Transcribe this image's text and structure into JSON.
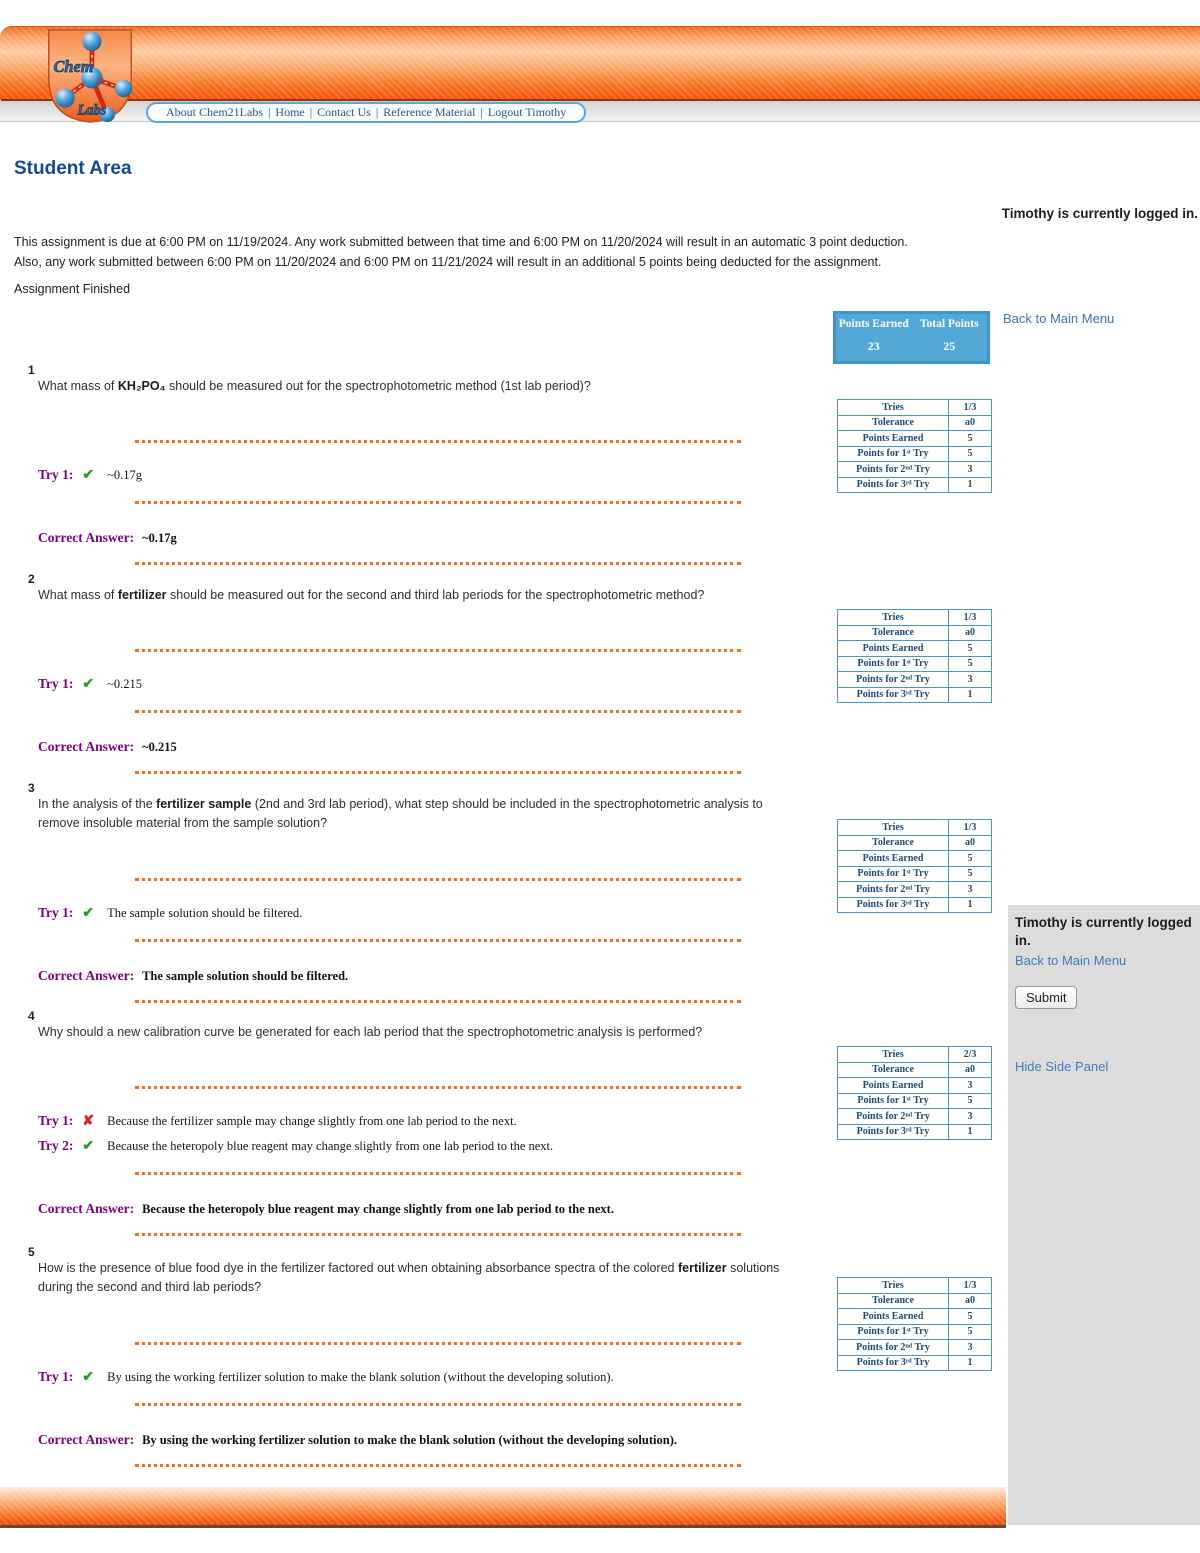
{
  "header": {
    "logo": {
      "line1": "Chem",
      "num": "21",
      "line2": "Labs"
    },
    "nav_links": [
      "About Chem21Labs",
      "Home",
      "Contact Us",
      "Reference Material",
      "Logout Timothy"
    ],
    "nav_separator": "|"
  },
  "page": {
    "title": "Student Area",
    "logged_in_notice": "Timothy is currently logged in.",
    "due_line1": "This assignment is due at 6:00 PM on 11/19/2024. Any work submitted between that time and 6:00 PM on 11/20/2024 will result in an automatic 3 point deduction.",
    "due_line2": "Also, any work submitted between 6:00 PM on 11/20/2024 and 6:00 PM on 11/21/2024 will result in an additional 5 points being deducted for the assignment.",
    "status": "Assignment Finished",
    "back_link": "Back to Main Menu"
  },
  "score_box": {
    "headers": [
      "Points Earned",
      "Total Points"
    ],
    "values": [
      "23",
      "25"
    ]
  },
  "side_panel": {
    "logged_in": "Timothy is currently logged in.",
    "back_link": "Back to Main Menu",
    "submit_label": "Submit",
    "hide_link": "Hide Side Panel"
  },
  "questions": [
    {
      "number": "1",
      "q_prefix": "What mass of ",
      "q_bold": "KH₂PO₄",
      "q_suffix": " should be measured out for the spectrophotometric method (1st lab period)?",
      "tries": [
        {
          "label": "Try 1:",
          "mark": "✔",
          "answer": "~0.17g"
        }
      ],
      "correct_label": "Correct Answer:",
      "correct_answer": "~0.17g",
      "table_rows": [
        [
          "Tries",
          "1/3"
        ],
        [
          "Tolerance",
          "a0"
        ],
        [
          "Points Earned",
          "5"
        ],
        [
          "Points for 1ˢᵗ Try",
          "5"
        ],
        [
          "Points for 2ⁿᵈ Try",
          "3"
        ],
        [
          "Points for 3ʳᵈ Try",
          "1"
        ]
      ]
    },
    {
      "number": "2",
      "q_prefix": "What mass of ",
      "q_bold": "fertilizer",
      "q_suffix": " should be measured out for the second and third lab periods for the spectrophotometric method?",
      "tries": [
        {
          "label": "Try 1:",
          "mark": "✔",
          "answer": "~0.215"
        }
      ],
      "correct_label": "Correct Answer:",
      "correct_answer": "~0.215",
      "table_rows": [
        [
          "Tries",
          "1/3"
        ],
        [
          "Tolerance",
          "a0"
        ],
        [
          "Points Earned",
          "5"
        ],
        [
          "Points for 1ˢᵗ Try",
          "5"
        ],
        [
          "Points for 2ⁿᵈ Try",
          "3"
        ],
        [
          "Points for 3ʳᵈ Try",
          "1"
        ]
      ]
    },
    {
      "number": "3",
      "q_prefix": "In the analysis of the ",
      "q_bold": "fertilizer sample",
      "q_suffix": " (2nd and 3rd lab period), what step should be included in the spectrophotometric analysis to remove insoluble material from the sample solution?",
      "tries": [
        {
          "label": "Try 1:",
          "mark": "✔",
          "answer": "The sample solution should be filtered."
        }
      ],
      "correct_label": "Correct Answer:",
      "correct_answer": "The sample solution should be filtered.",
      "table_rows": [
        [
          "Tries",
          "1/3"
        ],
        [
          "Tolerance",
          "a0"
        ],
        [
          "Points Earned",
          "5"
        ],
        [
          "Points for 1ˢᵗ Try",
          "5"
        ],
        [
          "Points for 2ⁿᵈ Try",
          "3"
        ],
        [
          "Points for 3ʳᵈ Try",
          "1"
        ]
      ]
    },
    {
      "number": "4",
      "q_prefix": "Why should a new calibration curve be generated for each lab period that the spectrophotometric analysis is performed?",
      "q_bold": "",
      "q_suffix": "",
      "tries": [
        {
          "label": "Try 1:",
          "mark": "✘",
          "answer": "Because the fertilizer sample may change slightly from one lab period to the next."
        },
        {
          "label": "Try 2:",
          "mark": "✔",
          "answer": "Because the heteropoly blue reagent may change slightly from one lab period to the next."
        }
      ],
      "correct_label": "Correct Answer:",
      "correct_answer": "Because the heteropoly blue reagent may change slightly from one lab period to the next.",
      "table_rows": [
        [
          "Tries",
          "2/3"
        ],
        [
          "Tolerance",
          "a0"
        ],
        [
          "Points Earned",
          "3"
        ],
        [
          "Points for 1ˢᵗ Try",
          "5"
        ],
        [
          "Points for 2ⁿᵈ Try",
          "3"
        ],
        [
          "Points for 3ʳᵈ Try",
          "1"
        ]
      ]
    },
    {
      "number": "5",
      "q_prefix": "How is the presence of blue food dye in the fertilizer factored out when obtaining absorbance spectra of the colored ",
      "q_bold": "fertilizer",
      "q_suffix": " solutions during the second and third lab periods?",
      "tries": [
        {
          "label": "Try 1:",
          "mark": "✔",
          "answer": "By using the working fertilizer solution to make the blank solution (without the developing solution)."
        }
      ],
      "correct_label": "Correct Answer:",
      "correct_answer": "By using the working fertilizer solution to make the blank solution (without the developing solution).",
      "table_rows": [
        [
          "Tries",
          "1/3"
        ],
        [
          "Tolerance",
          "a0"
        ],
        [
          "Points Earned",
          "5"
        ],
        [
          "Points for 1ˢᵗ Try",
          "5"
        ],
        [
          "Points for 2ⁿᵈ Try",
          "3"
        ],
        [
          "Points for 3ʳᵈ Try",
          "1"
        ]
      ]
    }
  ],
  "colors": {
    "accent_orange": "#f96a1c",
    "score_blue": "#54a8d7",
    "link_blue": "#3b72b8",
    "try_purple": "#800080",
    "check_green": "#1ea31e",
    "cross_red": "#e31d1d"
  }
}
